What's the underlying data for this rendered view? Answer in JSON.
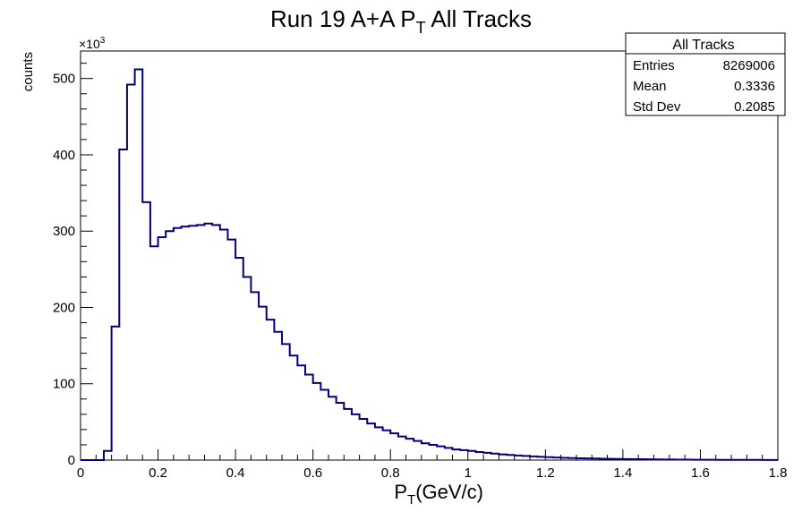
{
  "chart_data": {
    "type": "histogram",
    "title_main": "Run 19 A+A P",
    "title_sub": "T",
    "title_rest": " All Tracks",
    "xlabel_main": "P",
    "xlabel_sub": "T",
    "xlabel_rest": "(GeV/c)",
    "ylabel": "counts",
    "y_multiplier_base": "×10",
    "y_multiplier_exp": "3",
    "xlim": [
      0,
      1.8
    ],
    "ylim": [
      0,
      536
    ],
    "x_ticks": [
      {
        "v": 0,
        "label": "0"
      },
      {
        "v": 0.2,
        "label": "0.2"
      },
      {
        "v": 0.4,
        "label": "0.4"
      },
      {
        "v": 0.6,
        "label": "0.6"
      },
      {
        "v": 0.8,
        "label": "0.8"
      },
      {
        "v": 1.0,
        "label": "1"
      },
      {
        "v": 1.2,
        "label": "1.2"
      },
      {
        "v": 1.4,
        "label": "1.4"
      },
      {
        "v": 1.6,
        "label": "1.6"
      },
      {
        "v": 1.8,
        "label": "1.8"
      }
    ],
    "y_ticks": [
      {
        "v": 0,
        "label": "0"
      },
      {
        "v": 100,
        "label": "100"
      },
      {
        "v": 200,
        "label": "200"
      },
      {
        "v": 300,
        "label": "300"
      },
      {
        "v": 400,
        "label": "400"
      },
      {
        "v": 500,
        "label": "500"
      }
    ],
    "bin_width": 0.02,
    "bins_start": 0,
    "values": [
      0,
      0,
      0,
      12,
      175,
      407,
      492,
      512,
      338,
      280,
      292,
      300,
      304,
      306,
      307,
      308,
      310,
      308,
      302,
      289,
      265,
      240,
      220,
      201,
      184,
      168,
      152,
      137,
      124,
      112,
      101,
      92,
      83,
      75,
      67,
      60,
      54,
      48,
      43,
      39,
      35,
      31,
      28,
      25,
      22,
      20,
      18,
      16,
      14,
      13,
      12,
      10.5,
      9.5,
      8.5,
      7.5,
      6.8,
      6,
      5.4,
      4.8,
      4.3,
      3.8,
      3.4,
      3,
      2.7,
      2.4,
      2.2,
      2,
      1.8,
      1.6,
      1.4,
      1.3,
      1.2,
      1.1,
      1,
      0.9,
      0.8,
      0.7,
      0.6,
      0.55,
      0.5,
      0.45,
      0.4,
      0.35,
      0.32,
      0.3,
      0.27,
      0.25,
      0.23,
      0.21,
      0.2
    ],
    "line_color": "#00007f",
    "stats": {
      "title": "All Tracks",
      "rows": [
        {
          "label": "Entries",
          "value": "8269006"
        },
        {
          "label": "Mean",
          "value": "0.3336"
        },
        {
          "label": "Std Dev",
          "value": "0.2085"
        }
      ]
    }
  }
}
